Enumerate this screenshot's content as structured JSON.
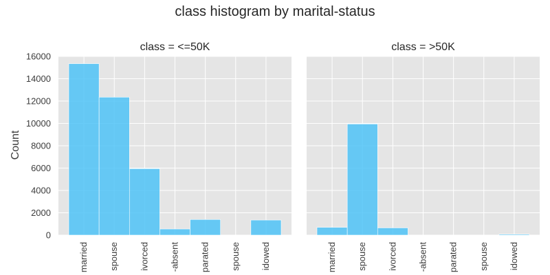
{
  "chart_data": {
    "type": "bar",
    "title": "class histogram by marital-status",
    "ylabel": "Count",
    "ylim": [
      0,
      16000
    ],
    "yticks": [
      0,
      2000,
      4000,
      6000,
      8000,
      10000,
      12000,
      14000,
      16000
    ],
    "categories": [
      "married",
      "spouse",
      "ivorced",
      "-absent",
      "parated",
      "spouse",
      "idowed"
    ],
    "grid": true,
    "bar_color": "#4fc3f7",
    "panels": [
      {
        "title": "class = <=50K",
        "values": [
          15350,
          12350,
          5950,
          550,
          1400,
          0,
          1350
        ]
      },
      {
        "title": "class = >50K",
        "values": [
          700,
          9950,
          650,
          0,
          0,
          0,
          80
        ]
      }
    ]
  }
}
